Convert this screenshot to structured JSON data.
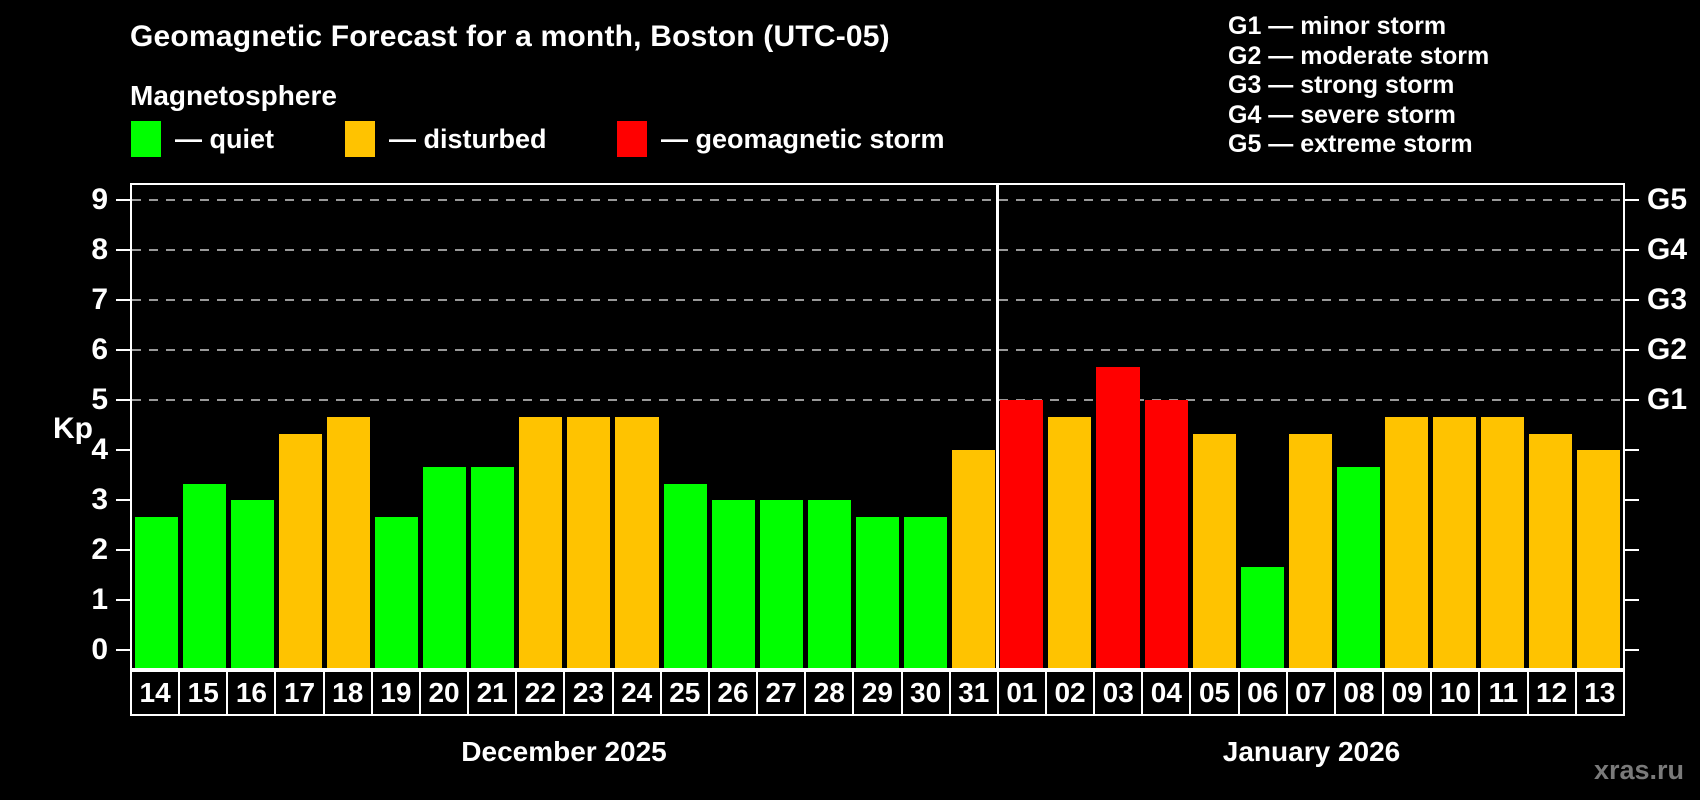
{
  "page": {
    "title": "Geomagnetic Forecast for a month, Boston (UTC-05)",
    "subtitle": "Magnetosphere",
    "watermark": "xras.ru"
  },
  "legend": [
    {
      "state": "quiet",
      "label": "— quiet"
    },
    {
      "state": "disturbed",
      "label": "— disturbed"
    },
    {
      "state": "storm",
      "label": "— geomagnetic storm"
    }
  ],
  "g_scale": [
    "G1 — minor storm",
    "G2 — moderate storm",
    "G3 — strong storm",
    "G4 — severe storm",
    "G5 — extreme storm"
  ],
  "colors": {
    "quiet": "#00ff00",
    "disturbed": "#ffc300",
    "storm": "#ff0000",
    "frame": "#ffffff",
    "grid": "#999999",
    "text": "#ffffff",
    "watermark": "#7a7a7a",
    "background": "#000000"
  },
  "chart_data": {
    "type": "bar",
    "title": "Geomagnetic Forecast for a month, Boston (UTC-05)",
    "ylabel": "Kp",
    "ylim": [
      0,
      9.3
    ],
    "y_ticks": [
      0,
      1,
      2,
      3,
      4,
      5,
      6,
      7,
      8,
      9
    ],
    "gridlines_at": [
      5,
      6,
      7,
      8,
      9
    ],
    "grid_style": "horizontal dashed gray lines only at Kp 5-9 (storm levels)",
    "legend_position": "top",
    "right_axis_labels": [
      {
        "kp": 5,
        "label": "G1"
      },
      {
        "kp": 6,
        "label": "G2"
      },
      {
        "kp": 7,
        "label": "G3"
      },
      {
        "kp": 8,
        "label": "G4"
      },
      {
        "kp": 9,
        "label": "G5"
      }
    ],
    "series": [
      {
        "month": "December 2025",
        "points": [
          {
            "day": "14",
            "kp": 2.67,
            "state": "quiet"
          },
          {
            "day": "15",
            "kp": 3.33,
            "state": "quiet"
          },
          {
            "day": "16",
            "kp": 3.0,
            "state": "quiet"
          },
          {
            "day": "17",
            "kp": 4.33,
            "state": "disturbed"
          },
          {
            "day": "18",
            "kp": 4.67,
            "state": "disturbed"
          },
          {
            "day": "19",
            "kp": 2.67,
            "state": "quiet"
          },
          {
            "day": "20",
            "kp": 3.67,
            "state": "quiet"
          },
          {
            "day": "21",
            "kp": 3.67,
            "state": "quiet"
          },
          {
            "day": "22",
            "kp": 4.67,
            "state": "disturbed"
          },
          {
            "day": "23",
            "kp": 4.67,
            "state": "disturbed"
          },
          {
            "day": "24",
            "kp": 4.67,
            "state": "disturbed"
          },
          {
            "day": "25",
            "kp": 3.33,
            "state": "quiet"
          },
          {
            "day": "26",
            "kp": 3.0,
            "state": "quiet"
          },
          {
            "day": "27",
            "kp": 3.0,
            "state": "quiet"
          },
          {
            "day": "28",
            "kp": 3.0,
            "state": "quiet"
          },
          {
            "day": "29",
            "kp": 2.67,
            "state": "quiet"
          },
          {
            "day": "30",
            "kp": 2.67,
            "state": "quiet"
          },
          {
            "day": "31",
            "kp": 4.0,
            "state": "disturbed"
          }
        ]
      },
      {
        "month": "January 2026",
        "points": [
          {
            "day": "01",
            "kp": 5.0,
            "state": "storm"
          },
          {
            "day": "02",
            "kp": 4.67,
            "state": "disturbed"
          },
          {
            "day": "03",
            "kp": 5.67,
            "state": "storm"
          },
          {
            "day": "04",
            "kp": 5.0,
            "state": "storm"
          },
          {
            "day": "05",
            "kp": 4.33,
            "state": "disturbed"
          },
          {
            "day": "06",
            "kp": 1.67,
            "state": "quiet"
          },
          {
            "day": "07",
            "kp": 4.33,
            "state": "disturbed"
          },
          {
            "day": "08",
            "kp": 3.67,
            "state": "quiet"
          },
          {
            "day": "09",
            "kp": 4.67,
            "state": "disturbed"
          },
          {
            "day": "10",
            "kp": 4.67,
            "state": "disturbed"
          },
          {
            "day": "11",
            "kp": 4.67,
            "state": "disturbed"
          },
          {
            "day": "12",
            "kp": 4.33,
            "state": "disturbed"
          },
          {
            "day": "13",
            "kp": 4.0,
            "state": "disturbed"
          }
        ]
      }
    ]
  }
}
